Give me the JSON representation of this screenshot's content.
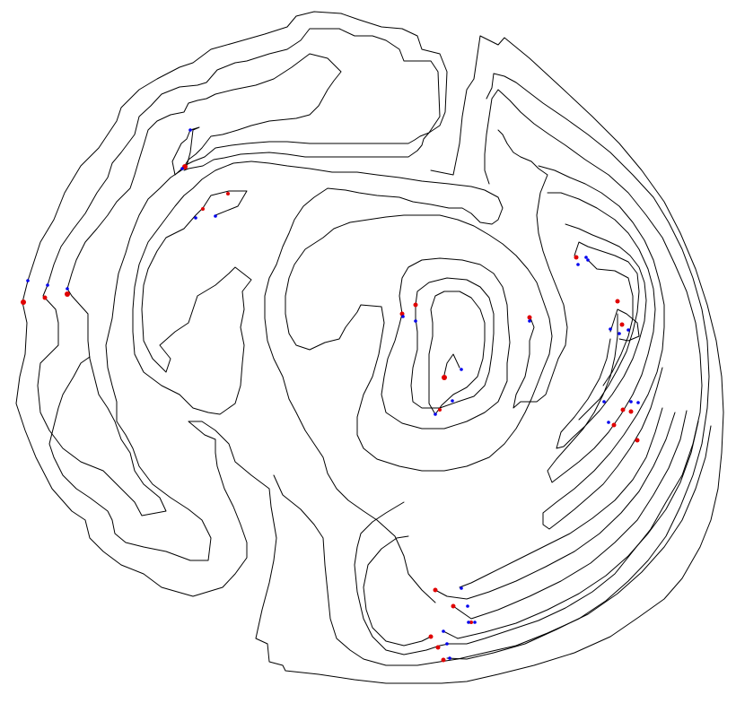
{
  "figure": {
    "type": "contour-line-map",
    "background_color": "#ffffff",
    "line_color": "#000000",
    "marker_colors": {
      "red": "#e00000",
      "blue": "#0000ee"
    },
    "contour_line_count": 20,
    "marker_count": {
      "red": 24,
      "blue": 30
    }
  }
}
